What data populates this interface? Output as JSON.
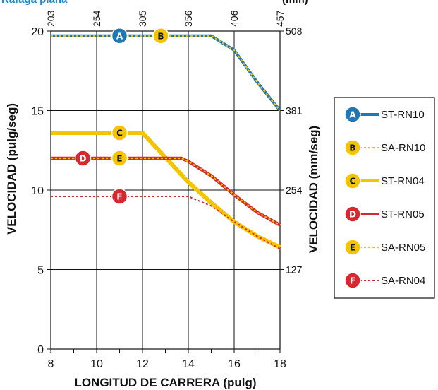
{
  "chart_data": {
    "type": "line",
    "title": "Ráfaga plana",
    "title_suffix": "(mm)",
    "xlabel": "LONGITUD DE CARRERA (pulg)",
    "ylabel_left": "VELOCIDAD (pulg/seg)",
    "ylabel_right": "VELOCIDAD (mm/seg)",
    "xlim": [
      8,
      18
    ],
    "ylim": [
      0,
      20
    ],
    "x_ticks": [
      "8",
      "10",
      "12",
      "14",
      "16",
      "18"
    ],
    "y_ticks": [
      "0",
      "5",
      "10",
      "15",
      "20"
    ],
    "top_ticks": [
      "203",
      "254",
      "305",
      "356",
      "406",
      "457"
    ],
    "right_ticks": [
      {
        "value": 5,
        "label": "127"
      },
      {
        "value": 10,
        "label": "254"
      },
      {
        "value": 15,
        "label": "381"
      },
      {
        "value": 20,
        "label": "508"
      }
    ],
    "grid": true,
    "legend_position": "right",
    "series": [
      {
        "id": "A",
        "name": "ST-RN10",
        "style": "solid-blue",
        "x": [
          8,
          15,
          16,
          17,
          18
        ],
        "y": [
          19.7,
          19.7,
          18.8,
          16.8,
          15.0
        ],
        "badge_x": 11
      },
      {
        "id": "B",
        "name": "SA-RN10",
        "style": "dotted-yellow",
        "x": [
          8,
          15,
          16,
          17,
          18
        ],
        "y": [
          19.7,
          19.7,
          18.8,
          16.8,
          15.0
        ],
        "badge_x": 12.8
      },
      {
        "id": "C",
        "name": "ST-RN04",
        "style": "thick-yellow",
        "x": [
          8,
          12,
          14,
          15,
          16,
          17,
          18
        ],
        "y": [
          13.6,
          13.6,
          10.5,
          9.2,
          8.0,
          7.1,
          6.4
        ],
        "badge_x": 11
      },
      {
        "id": "D",
        "name": "ST-RN05",
        "style": "solid-red",
        "x": [
          8,
          13.7,
          14,
          15,
          16,
          17,
          18
        ],
        "y": [
          12.0,
          12.0,
          11.8,
          10.9,
          9.7,
          8.6,
          7.8
        ],
        "badge_x": 9.4
      },
      {
        "id": "E",
        "name": "SA-RN05",
        "style": "dotted-yellow",
        "x": [
          8,
          13.7,
          14,
          15,
          16,
          17,
          18
        ],
        "y": [
          12.0,
          12.0,
          11.8,
          10.9,
          9.7,
          8.6,
          7.8
        ],
        "badge_x": 11
      },
      {
        "id": "F",
        "name": "SA-RN04",
        "style": "dotted-red",
        "x": [
          8,
          14,
          15,
          16,
          17,
          18
        ],
        "y": [
          9.6,
          9.6,
          9.0,
          8.0,
          7.1,
          6.3
        ],
        "badge_x": 11
      }
    ]
  },
  "colors": {
    "blue": "#1f77b4",
    "yellow": "#f5c400",
    "red": "#d7282f",
    "title_blue": "#1e88d0"
  }
}
